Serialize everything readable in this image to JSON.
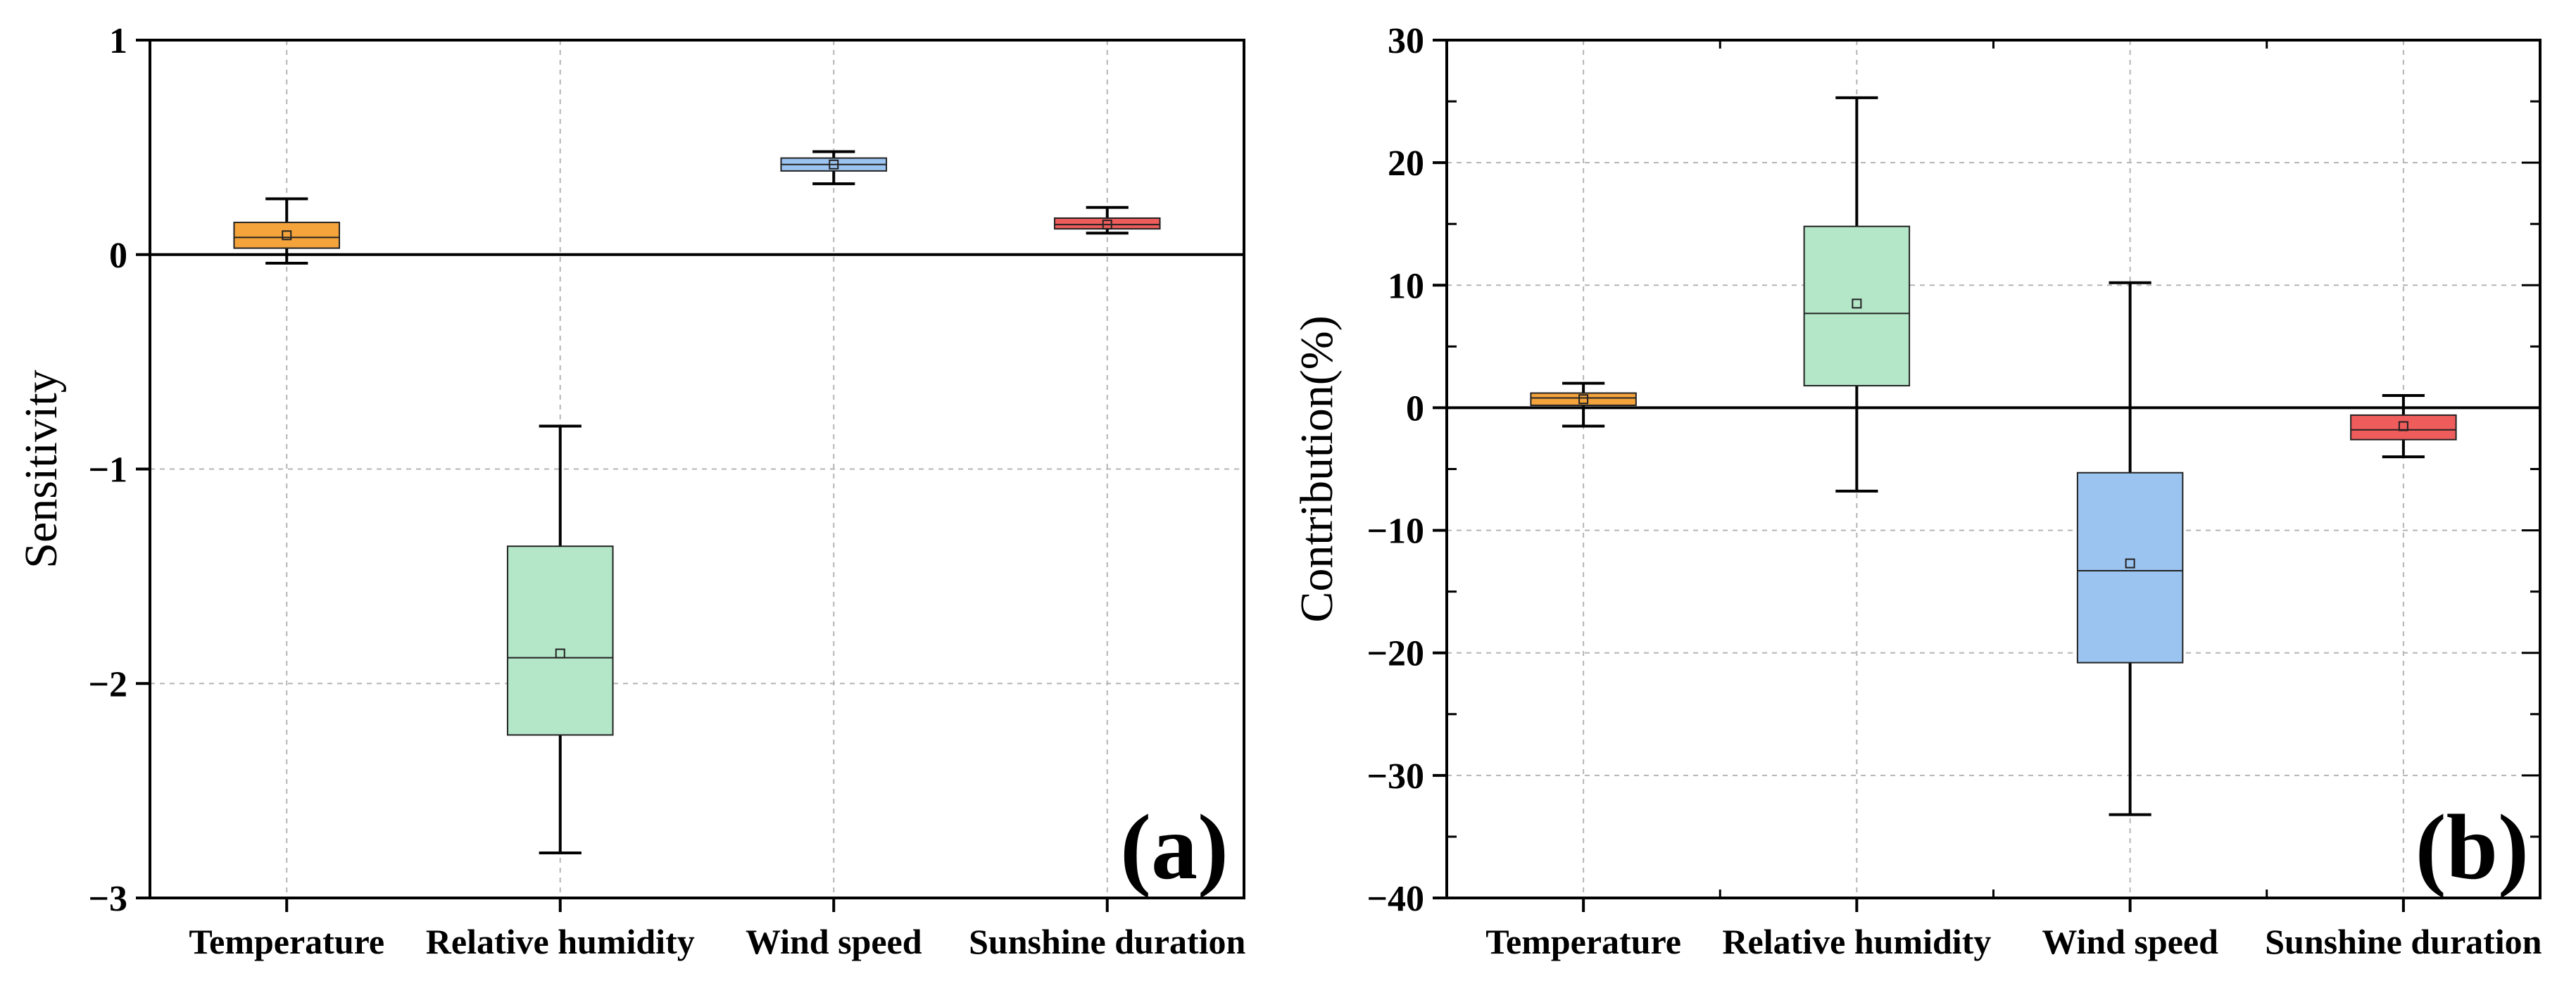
{
  "chart_data": [
    {
      "type": "box",
      "panel_label": "(a)",
      "xlabel": "",
      "ylabel": "Sensitivity",
      "ylim": [
        -3,
        1
      ],
      "yticks": [
        -3,
        -2,
        -1,
        0,
        1
      ],
      "ytick_labels": [
        "−3",
        "−2",
        "−1",
        "0",
        "1"
      ],
      "grid": true,
      "zero_line": true,
      "categories": [
        "Temperature",
        "Relative humidity",
        "Wind speed",
        "Sunshine duration"
      ],
      "boxes": [
        {
          "category": "Temperature",
          "whisker_low": -0.04,
          "q1": 0.03,
          "median": 0.08,
          "q3": 0.15,
          "whisker_high": 0.26,
          "mean": 0.09,
          "color": "#f5a43c"
        },
        {
          "category": "Relative humidity",
          "whisker_low": -2.79,
          "q1": -2.24,
          "median": -1.88,
          "q3": -1.36,
          "whisker_high": -0.8,
          "mean": -1.86,
          "color": "#b4e6c8"
        },
        {
          "category": "Wind speed",
          "whisker_low": 0.33,
          "q1": 0.39,
          "median": 0.42,
          "q3": 0.45,
          "whisker_high": 0.48,
          "mean": 0.42,
          "color": "#9cc4f0"
        },
        {
          "category": "Sunshine duration",
          "whisker_low": 0.1,
          "q1": 0.12,
          "median": 0.14,
          "q3": 0.17,
          "whisker_high": 0.22,
          "mean": 0.14,
          "color": "#ee5c5c"
        }
      ]
    },
    {
      "type": "box",
      "panel_label": "(b)",
      "xlabel": "",
      "ylabel": "Contribution(%)",
      "ylim": [
        -40,
        30
      ],
      "yticks": [
        -40,
        -30,
        -20,
        -10,
        0,
        10,
        20,
        30
      ],
      "ytick_labels": [
        "−40",
        "−30",
        "−20",
        "−10",
        "0",
        "10",
        "20",
        "30"
      ],
      "grid": true,
      "zero_line": true,
      "categories": [
        "Temperature",
        "Relative humidity",
        "Wind speed",
        "Sunshine duration"
      ],
      "boxes": [
        {
          "category": "Temperature",
          "whisker_low": -1.5,
          "q1": 0.2,
          "median": 0.8,
          "q3": 1.2,
          "whisker_high": 2.0,
          "mean": 0.7,
          "color": "#f5a43c"
        },
        {
          "category": "Relative humidity",
          "whisker_low": -6.8,
          "q1": 1.8,
          "median": 7.7,
          "q3": 14.8,
          "whisker_high": 25.3,
          "mean": 8.5,
          "color": "#b4e6c8"
        },
        {
          "category": "Wind speed",
          "whisker_low": -33.2,
          "q1": -20.8,
          "median": -13.3,
          "q3": -5.3,
          "whisker_high": 10.2,
          "mean": -12.7,
          "color": "#9cc4f0"
        },
        {
          "category": "Sunshine duration",
          "whisker_low": -4.0,
          "q1": -2.6,
          "median": -1.8,
          "q3": -0.6,
          "whisker_high": 1.0,
          "mean": -1.5,
          "color": "#ee5c5c"
        }
      ]
    }
  ]
}
